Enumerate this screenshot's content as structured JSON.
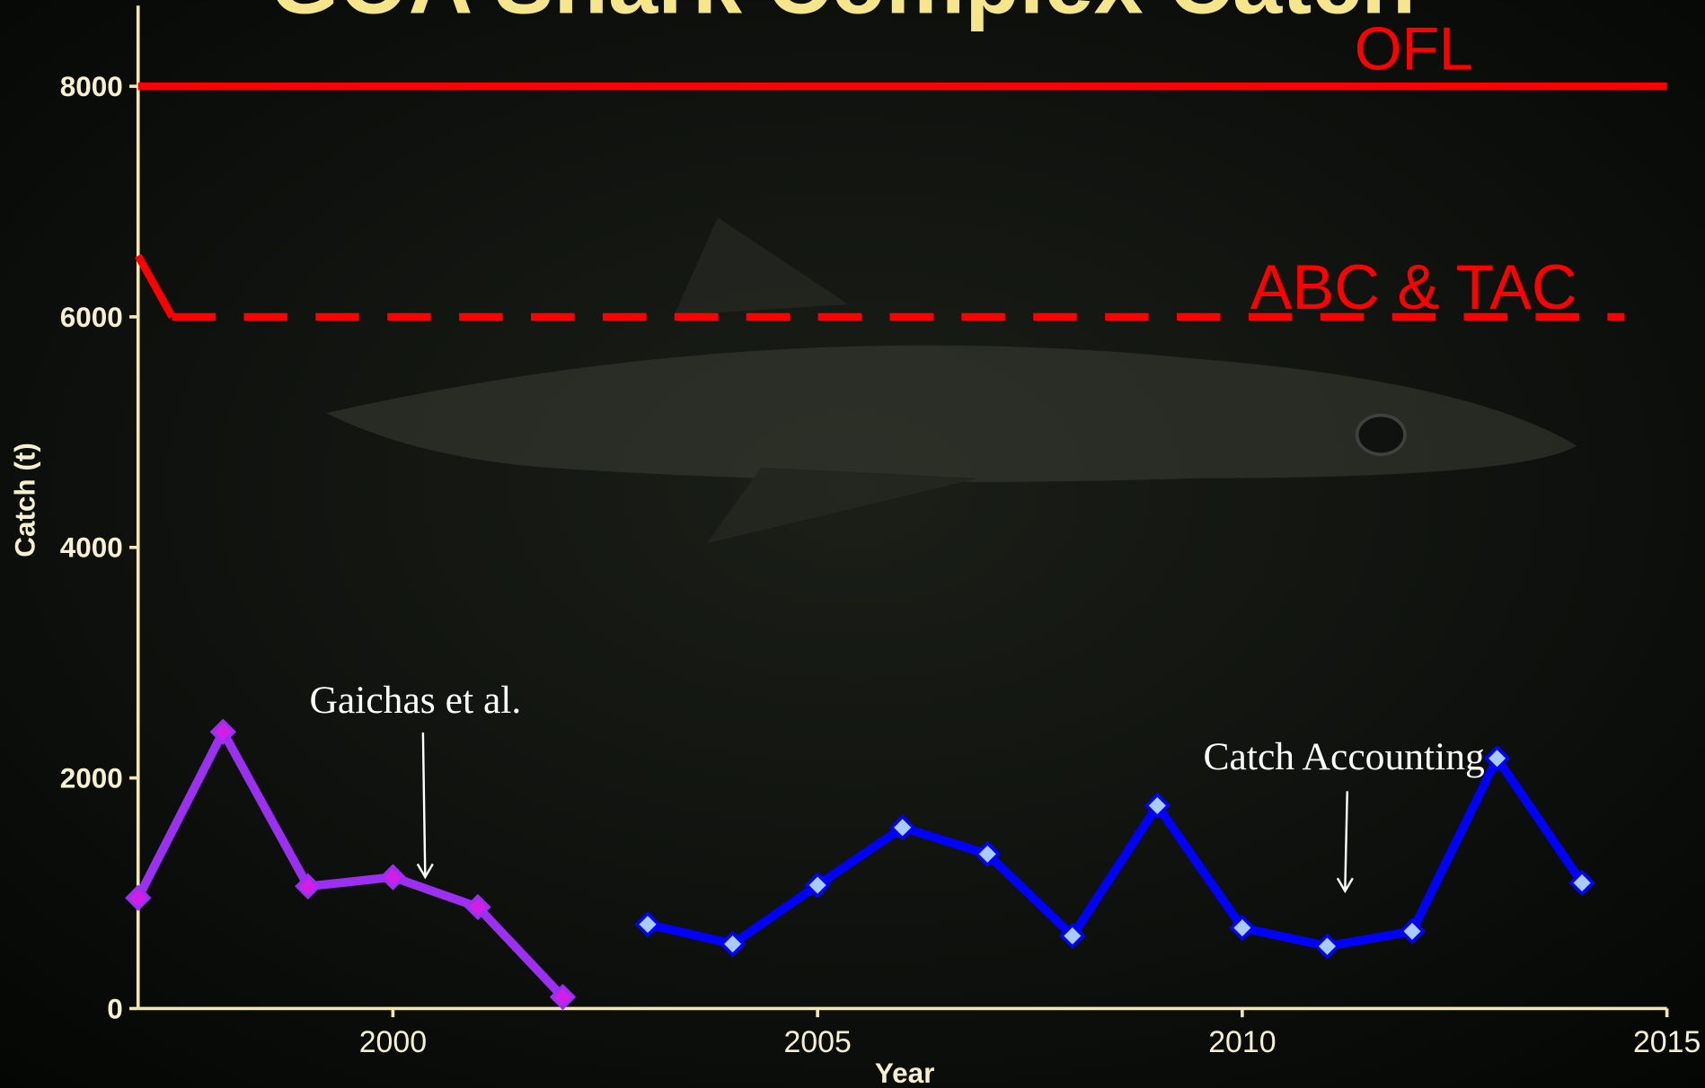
{
  "chart_data": {
    "type": "line",
    "title": "GOA Shark Complex Catch",
    "x_label": "Year",
    "y_label": "Catch (t)",
    "xlim": [
      1997,
      2015
    ],
    "xticks": [
      2000,
      2005,
      2010,
      2015
    ],
    "ylim": [
      0,
      8700
    ],
    "yticks": [
      0,
      2000,
      4000,
      6000,
      8000
    ],
    "series": [
      {
        "name": "OFL",
        "color": "#ff0000",
        "style": "solid",
        "x": [
          1997,
          2015
        ],
        "values": [
          8000,
          8000
        ]
      },
      {
        "color": "#ff0000",
        "style": "solid",
        "x": [
          1997,
          1997.4
        ],
        "values": [
          6530,
          6000
        ]
      },
      {
        "name": "ABC & TAC",
        "color": "#ff0000",
        "style": "dashed",
        "x": [
          1997.4,
          2014.5
        ],
        "values": [
          6000,
          6000
        ]
      },
      {
        "color": "#9b30f0",
        "marker_color": "#d21ee6",
        "style": "solid",
        "markers": true,
        "x": [
          1997,
          1998,
          1999,
          2000,
          2001,
          2002
        ],
        "values": [
          960,
          2400,
          1060,
          1140,
          880,
          100
        ]
      },
      {
        "color": "#0000ff",
        "marker_color": "#a8ccff",
        "style": "solid",
        "markers": true,
        "x": [
          2003,
          2004,
          2005,
          2006,
          2007,
          2008,
          2009,
          2010,
          2011,
          2012,
          2013,
          2014
        ],
        "values": [
          730,
          560,
          1070,
          1570,
          1340,
          630,
          1760,
          700,
          540,
          670,
          2170,
          1090
        ]
      }
    ],
    "annotations": [
      "Gaichas et al.",
      "Catch Accounting"
    ]
  }
}
